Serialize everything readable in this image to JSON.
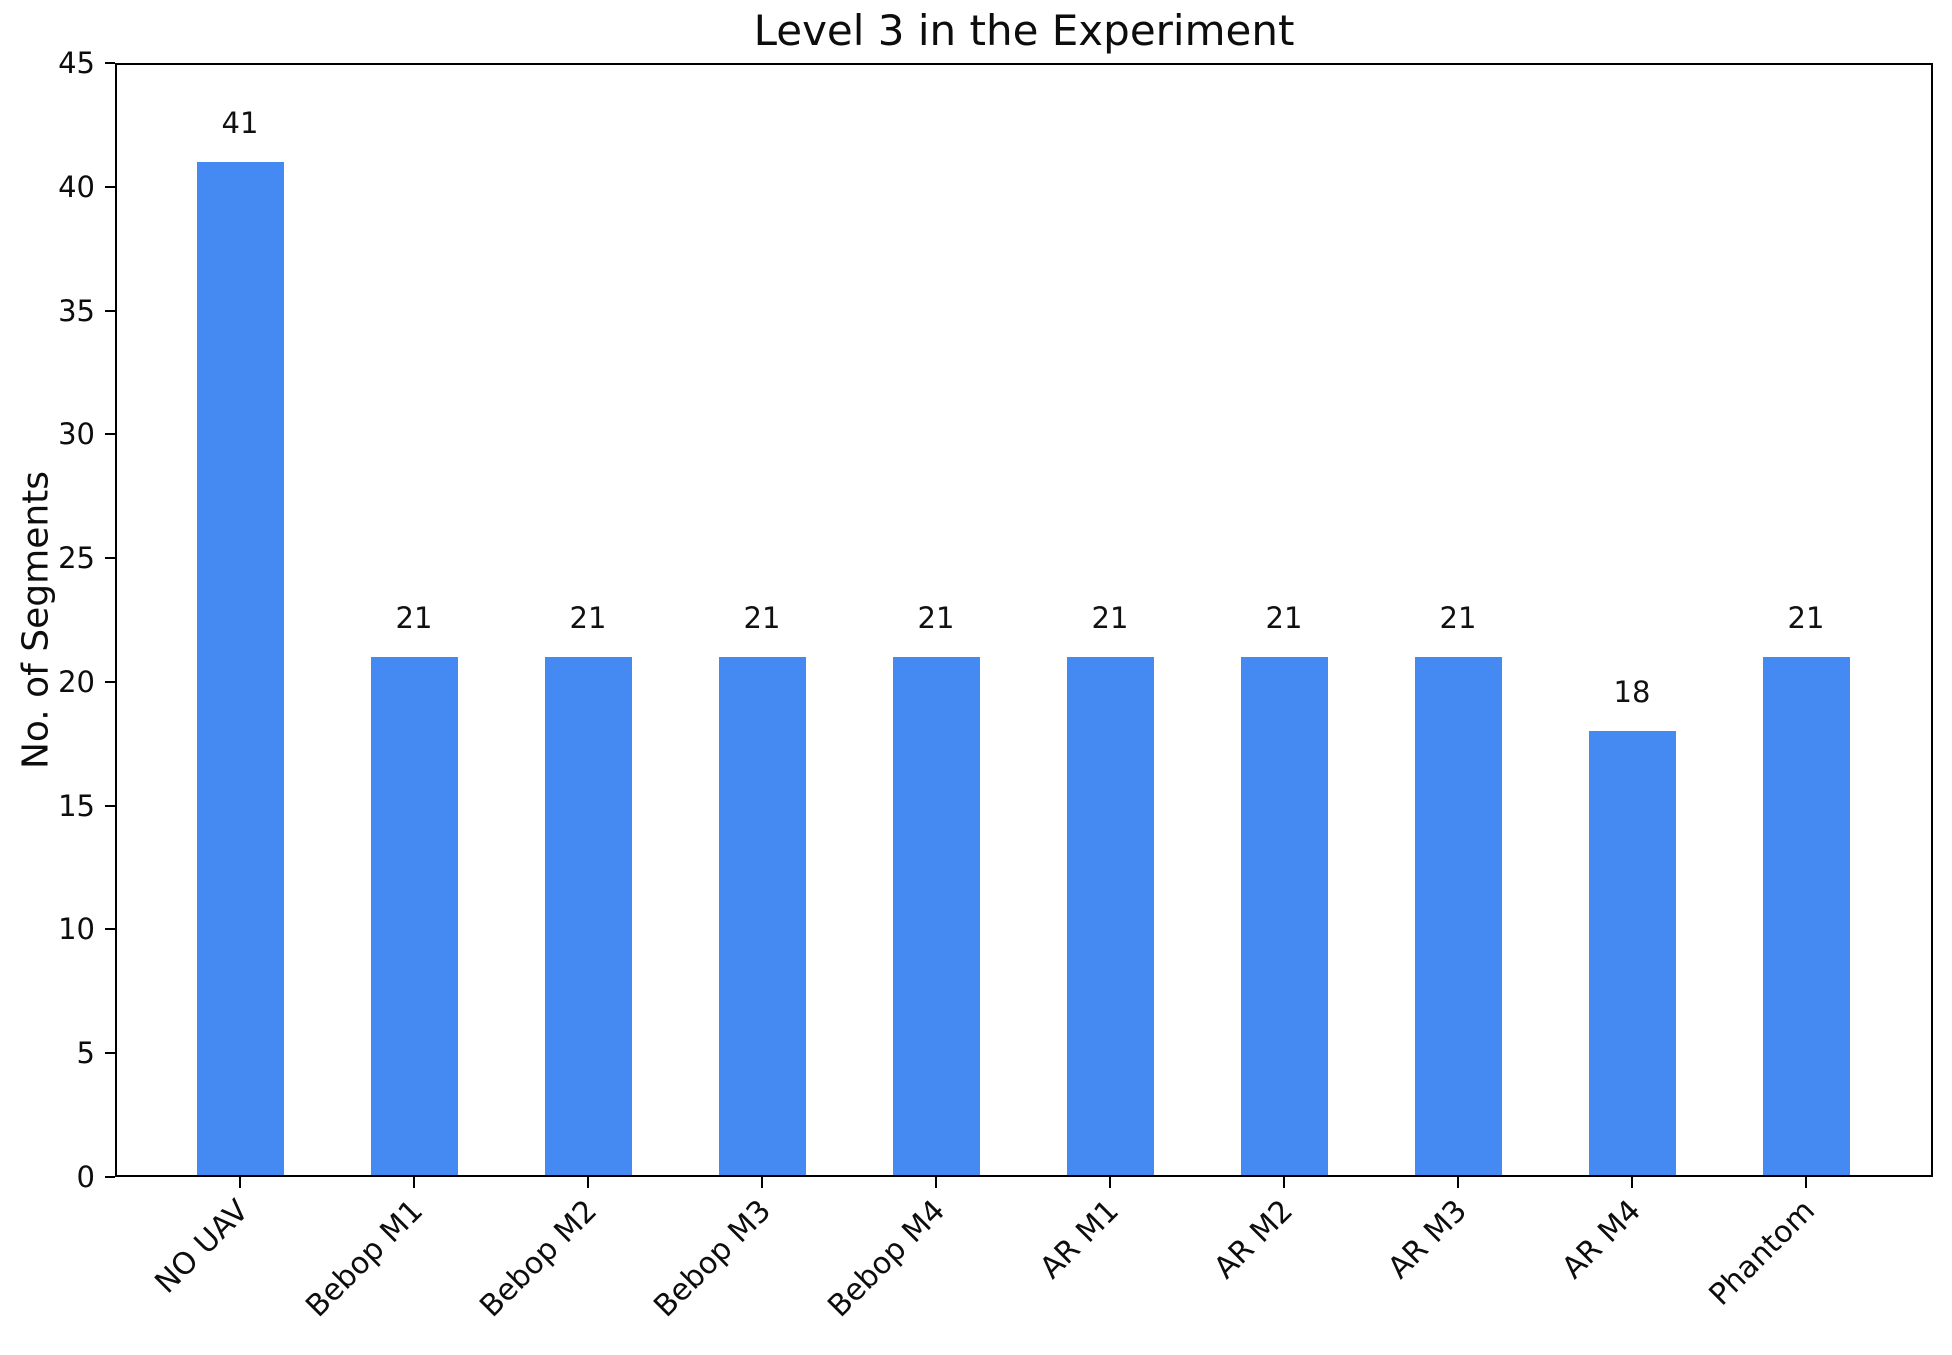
{
  "chart_data": {
    "type": "bar",
    "title": "Level 3 in the Experiment",
    "xlabel": "",
    "ylabel": "No. of Segments",
    "categories": [
      "NO UAV",
      "Bebop M1",
      "Bebop M2",
      "Bebop M3",
      "Bebop M4",
      "AR M1",
      "AR M2",
      "AR M3",
      "AR M4",
      "Phantom"
    ],
    "values": [
      41,
      21,
      21,
      21,
      21,
      21,
      21,
      21,
      18,
      21
    ],
    "value_labels": [
      "41",
      "21",
      "21",
      "21",
      "21",
      "21",
      "21",
      "21",
      "18",
      "21"
    ],
    "ylim": [
      0,
      45
    ],
    "yticks": [
      0,
      5,
      10,
      15,
      20,
      25,
      30,
      35,
      40,
      45
    ],
    "bar_color": "#4589F2",
    "background_color": "#FFFFFF",
    "frame_color": "#000000",
    "grid": false,
    "legend": null,
    "x_tick_rotation": 45
  }
}
